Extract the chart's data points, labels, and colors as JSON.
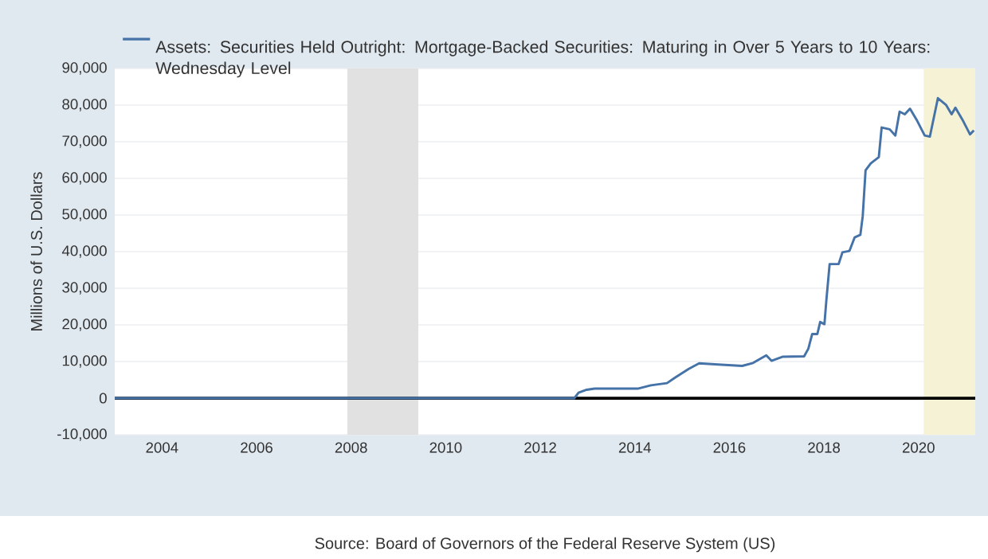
{
  "chart_data": {
    "type": "line",
    "ylabel": "Millions of U.S. Dollars",
    "series": [
      {
        "name": "Assets: Securities Held Outright: Mortgage-Backed Securities: Maturing in Over 5 Years to 10 Years: Wednesday Level",
        "color": "#4572a7",
        "x": [
          2003.0,
          2012.72,
          2012.81,
          2012.98,
          2013.15,
          2014.06,
          2014.34,
          2014.68,
          2014.85,
          2015.14,
          2015.36,
          2015.76,
          2016.27,
          2016.5,
          2016.78,
          2016.89,
          2017.12,
          2017.58,
          2017.67,
          2017.75,
          2017.86,
          2017.92,
          2018.01,
          2018.05,
          2018.12,
          2018.31,
          2018.39,
          2018.54,
          2018.65,
          2018.77,
          2018.82,
          2018.88,
          2018.99,
          2019.16,
          2019.22,
          2019.39,
          2019.51,
          2019.6,
          2019.71,
          2019.82,
          2019.96,
          2020.13,
          2020.24,
          2020.41,
          2020.58,
          2020.7,
          2020.78,
          2020.93,
          2021.09,
          2021.17
        ],
        "values": [
          0,
          0,
          1500,
          2300,
          2600,
          2600,
          3500,
          4100,
          5600,
          8000,
          9500,
          9200,
          8800,
          9600,
          11700,
          10200,
          11300,
          11400,
          13500,
          17500,
          17500,
          20800,
          20200,
          26600,
          36600,
          36600,
          39800,
          40200,
          43900,
          44600,
          49700,
          62200,
          64100,
          65800,
          73900,
          73400,
          71700,
          78200,
          77500,
          79000,
          76000,
          71700,
          71400,
          81900,
          80100,
          77500,
          79300,
          76000,
          72000,
          73100
        ]
      }
    ],
    "xlim": [
      2003.0,
      2021.2
    ],
    "ylim": [
      -10000,
      90000
    ],
    "xticks": [
      2004,
      2006,
      2008,
      2010,
      2012,
      2014,
      2016,
      2018,
      2020
    ],
    "yticks": [
      {
        "value": -10000,
        "label": "-10,000"
      },
      {
        "value": 0,
        "label": "0"
      },
      {
        "value": 10000,
        "label": "10,000"
      },
      {
        "value": 20000,
        "label": "20,000"
      },
      {
        "value": 30000,
        "label": "30,000"
      },
      {
        "value": 40000,
        "label": "40,000"
      },
      {
        "value": 50000,
        "label": "50,000"
      },
      {
        "value": 60000,
        "label": "60,000"
      },
      {
        "value": 70000,
        "label": "70,000"
      },
      {
        "value": 80000,
        "label": "80,000"
      },
      {
        "value": 90000,
        "label": "90,000"
      }
    ],
    "bands": [
      {
        "axis": "x",
        "from": 2007.92,
        "to": 2009.42,
        "color": "#e1e1e1"
      },
      {
        "axis": "x",
        "from": 2020.11,
        "to": 2021.2,
        "color": "#f5f2d5"
      }
    ],
    "ref_lines": [
      {
        "axis": "y",
        "value": 0,
        "color": "#000000"
      }
    ],
    "grid": "y",
    "legend": "top left",
    "annotations": [
      "Source: Board of Governors of the Federal Reserve System (US)"
    ]
  }
}
